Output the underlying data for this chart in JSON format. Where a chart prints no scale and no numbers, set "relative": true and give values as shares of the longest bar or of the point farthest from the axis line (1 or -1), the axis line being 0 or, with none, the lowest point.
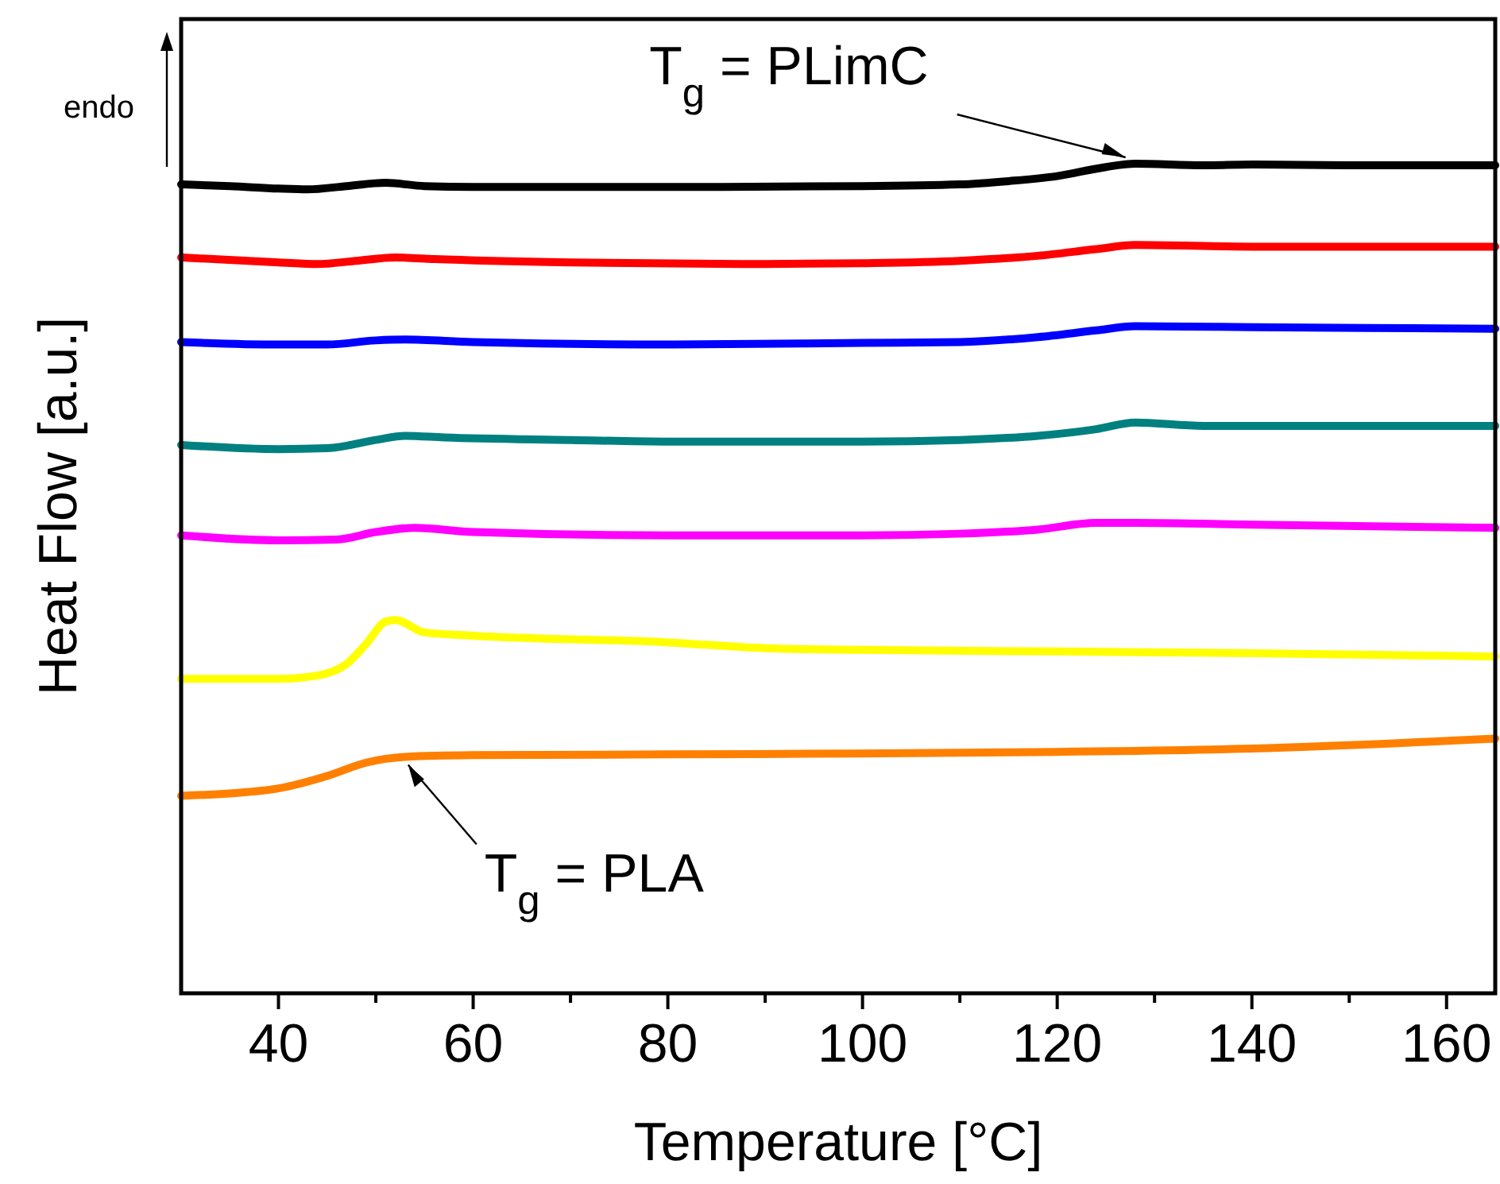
{
  "chart_data": {
    "type": "line",
    "relative": true,
    "xlabel": "Temperature [°C]",
    "ylabel": "Heat Flow [a.u.]",
    "xlim": [
      30,
      165
    ],
    "xticks": [
      40,
      {
        "value": 50,
        "label": null
      },
      60,
      {
        "value": 70,
        "label": null
      },
      80,
      {
        "value": 90,
        "label": null
      },
      100,
      {
        "value": 110,
        "label": null
      },
      120,
      {
        "value": 130,
        "label": null
      },
      140,
      {
        "value": 150,
        "label": null
      },
      160
    ],
    "grid": false,
    "line_style": "solid",
    "annotations": [
      "endo",
      {
        "text": "T$_{g}$ = PLimC",
        "x": 128,
        "y": 1
      },
      {
        "text": "T$_{g}$ = PLA",
        "x": 53,
        "y": 0.285
      }
    ],
    "series": [
      {
        "color": "#000000",
        "x": [
          30,
          35,
          40,
          43,
          47,
          51,
          55,
          60,
          80,
          100,
          110,
          115,
          120,
          125,
          128,
          135,
          140,
          150,
          165
        ],
        "values": [
          0.975,
          0.973,
          0.97,
          0.969,
          0.973,
          0.977,
          0.973,
          0.972,
          0.972,
          0.973,
          0.975,
          0.979,
          0.985,
          0.996,
          1,
          0.998,
          0.999,
          0.998,
          0.998
        ]
      },
      {
        "color": "#ff0000",
        "x": [
          30,
          40,
          44,
          48,
          52,
          56,
          70,
          90,
          100,
          110,
          118,
          124,
          128,
          140,
          165
        ],
        "values": [
          0.887,
          0.881,
          0.879,
          0.883,
          0.887,
          0.885,
          0.881,
          0.879,
          0.88,
          0.883,
          0.889,
          0.897,
          0.902,
          0.9,
          0.9
        ]
      },
      {
        "color": "#0000ff",
        "x": [
          30,
          40,
          45,
          50,
          53,
          60,
          80,
          100,
          110,
          118,
          124,
          128,
          140,
          165
        ],
        "values": [
          0.785,
          0.782,
          0.782,
          0.787,
          0.788,
          0.785,
          0.782,
          0.784,
          0.785,
          0.791,
          0.799,
          0.804,
          0.803,
          0.801
        ]
      },
      {
        "color": "#008080",
        "x": [
          30,
          40,
          45,
          50,
          53,
          57,
          70,
          80,
          100,
          110,
          118,
          124,
          128,
          135,
          150,
          165
        ],
        "values": [
          0.661,
          0.656,
          0.657,
          0.667,
          0.672,
          0.67,
          0.667,
          0.665,
          0.665,
          0.667,
          0.672,
          0.68,
          0.688,
          0.684,
          0.684,
          0.684
        ]
      },
      {
        "color": "#ff00ff",
        "x": [
          30,
          40,
          46,
          50,
          54,
          60,
          80,
          100,
          110,
          118,
          124,
          128,
          140,
          165
        ],
        "values": [
          0.552,
          0.546,
          0.547,
          0.556,
          0.561,
          0.556,
          0.552,
          0.552,
          0.554,
          0.559,
          0.567,
          0.567,
          0.565,
          0.561
        ]
      },
      {
        "color": "#ffff00",
        "x": [
          30,
          40,
          44,
          47,
          49,
          51,
          52,
          55,
          60,
          80,
          90,
          100,
          120,
          140,
          165
        ],
        "values": [
          0.379,
          0.379,
          0.383,
          0.397,
          0.421,
          0.448,
          0.45,
          0.435,
          0.431,
          0.423,
          0.416,
          0.414,
          0.412,
          0.41,
          0.406
        ]
      },
      {
        "color": "#ff8000",
        "x": [
          30,
          35,
          40,
          45,
          49,
          53,
          60,
          80,
          100,
          120,
          140,
          165
        ],
        "values": [
          0.238,
          0.241,
          0.247,
          0.262,
          0.278,
          0.285,
          0.287,
          0.288,
          0.289,
          0.291,
          0.295,
          0.307
        ]
      }
    ]
  }
}
